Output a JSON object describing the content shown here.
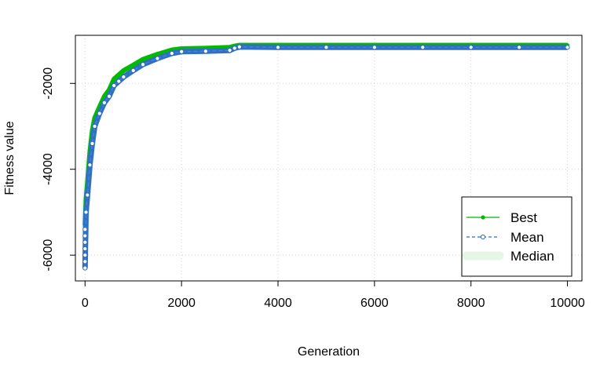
{
  "chart_data": {
    "type": "line",
    "title": "",
    "xlabel": "Generation",
    "ylabel": "Fitness value",
    "xlim": [
      -200,
      10300
    ],
    "ylim": [
      -6600,
      -880
    ],
    "x_ticks": [
      0,
      2000,
      4000,
      6000,
      8000,
      10000
    ],
    "y_ticks": [
      -6000,
      -4000,
      -2000
    ],
    "x_tick_labels": [
      "0",
      "2000",
      "4000",
      "6000",
      "8000",
      "10000"
    ],
    "y_tick_labels": [
      "-6000",
      "-4000",
      "-2000"
    ],
    "grid": true,
    "legend_position": "bottom-right",
    "series": [
      {
        "name": "Best",
        "color": "#00bb00",
        "style": "solid line with filled points",
        "x": [
          0,
          20,
          50,
          100,
          150,
          200,
          300,
          400,
          500,
          600,
          700,
          800,
          1000,
          1200,
          1500,
          1800,
          2000,
          2500,
          3000,
          3100,
          3200,
          4000,
          5000,
          6000,
          7000,
          8000,
          9000,
          10000
        ],
        "y": [
          -5300,
          -4700,
          -4300,
          -3600,
          -3100,
          -2800,
          -2550,
          -2300,
          -2150,
          -1900,
          -1800,
          -1700,
          -1570,
          -1440,
          -1320,
          -1220,
          -1190,
          -1180,
          -1160,
          -1130,
          -1110,
          -1110,
          -1110,
          -1110,
          -1110,
          -1110,
          -1110,
          -1110
        ]
      },
      {
        "name": "Mean",
        "color": "#2f6fc4",
        "style": "dashed line with open circles",
        "x": [
          0,
          20,
          50,
          100,
          150,
          200,
          300,
          400,
          500,
          600,
          700,
          800,
          1000,
          1200,
          1500,
          1800,
          2000,
          2500,
          3000,
          3100,
          3200,
          4000,
          5000,
          6000,
          7000,
          8000,
          9000,
          10000
        ],
        "y": [
          -6300,
          -5000,
          -4600,
          -3900,
          -3400,
          -3000,
          -2700,
          -2450,
          -2300,
          -2050,
          -1950,
          -1850,
          -1700,
          -1560,
          -1420,
          -1300,
          -1260,
          -1250,
          -1230,
          -1180,
          -1150,
          -1160,
          -1160,
          -1160,
          -1160,
          -1160,
          -1160,
          -1160
        ]
      },
      {
        "name": "Median",
        "color": "#e6f6e6",
        "style": "thick pale line",
        "x": [
          0,
          20,
          50,
          100,
          150,
          200,
          300,
          400,
          500,
          600,
          700,
          800,
          1000,
          1200,
          1500,
          1800,
          2000,
          2500,
          3000,
          3100,
          3200,
          4000,
          5000,
          6000,
          7000,
          8000,
          9000,
          10000
        ],
        "y": [
          -5600,
          -4800,
          -4400,
          -3750,
          -3250,
          -2900,
          -2620,
          -2370,
          -2220,
          -1970,
          -1870,
          -1770,
          -1630,
          -1500,
          -1370,
          -1250,
          -1220,
          -1210,
          -1190,
          -1150,
          -1130,
          -1130,
          -1130,
          -1130,
          -1130,
          -1130,
          -1130,
          -1130
        ]
      }
    ]
  }
}
